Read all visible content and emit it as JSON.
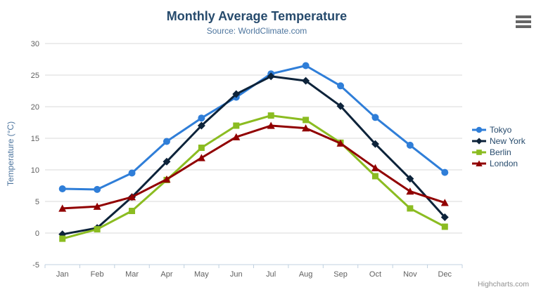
{
  "header": {
    "title": "Monthly Average Temperature",
    "subtitle": "Source: WorldClimate.com"
  },
  "toolbar": {
    "export_menu_icon": "hamburger-menu-icon"
  },
  "credits": {
    "label": "Highcharts.com"
  },
  "chart_data": {
    "type": "line",
    "title": "Monthly Average Temperature",
    "subtitle": "Source: WorldClimate.com",
    "categories": [
      "Jan",
      "Feb",
      "Mar",
      "Apr",
      "May",
      "Jun",
      "Jul",
      "Aug",
      "Sep",
      "Oct",
      "Nov",
      "Dec"
    ],
    "xlabel": "",
    "ylabel": "Temperature (°C)",
    "ylim": [
      -5,
      30
    ],
    "yticks": [
      -5,
      0,
      5,
      10,
      15,
      20,
      25,
      30
    ],
    "grid": "horizontal",
    "legend_position": "right",
    "series": [
      {
        "name": "Tokyo",
        "color": "#2f7ed8",
        "marker": "circle",
        "values": [
          7.0,
          6.9,
          9.5,
          14.5,
          18.2,
          21.5,
          25.2,
          26.5,
          23.3,
          18.3,
          13.9,
          9.6
        ]
      },
      {
        "name": "New York",
        "color": "#0d233a",
        "marker": "diamond",
        "values": [
          -0.2,
          0.8,
          5.7,
          11.3,
          17.0,
          22.0,
          24.8,
          24.1,
          20.1,
          14.1,
          8.6,
          2.5
        ]
      },
      {
        "name": "Berlin",
        "color": "#8bbc21",
        "marker": "square",
        "values": [
          -0.9,
          0.6,
          3.5,
          8.4,
          13.5,
          17.0,
          18.6,
          17.9,
          14.3,
          9.0,
          3.9,
          1.0
        ]
      },
      {
        "name": "London",
        "color": "#910000",
        "marker": "triangle",
        "values": [
          3.9,
          4.2,
          5.7,
          8.5,
          11.9,
          15.2,
          17.0,
          16.6,
          14.2,
          10.3,
          6.6,
          4.8
        ]
      }
    ]
  },
  "colors": {
    "title_text": "#274b6d",
    "subtitle_text": "#4d759e",
    "axis_label_text": "#606060",
    "axis_line": "#c0d0e0",
    "gridline": "#d8d8d8",
    "legend_text": "#274b6d",
    "credits_text": "#909090",
    "export_icon": "#666666"
  }
}
